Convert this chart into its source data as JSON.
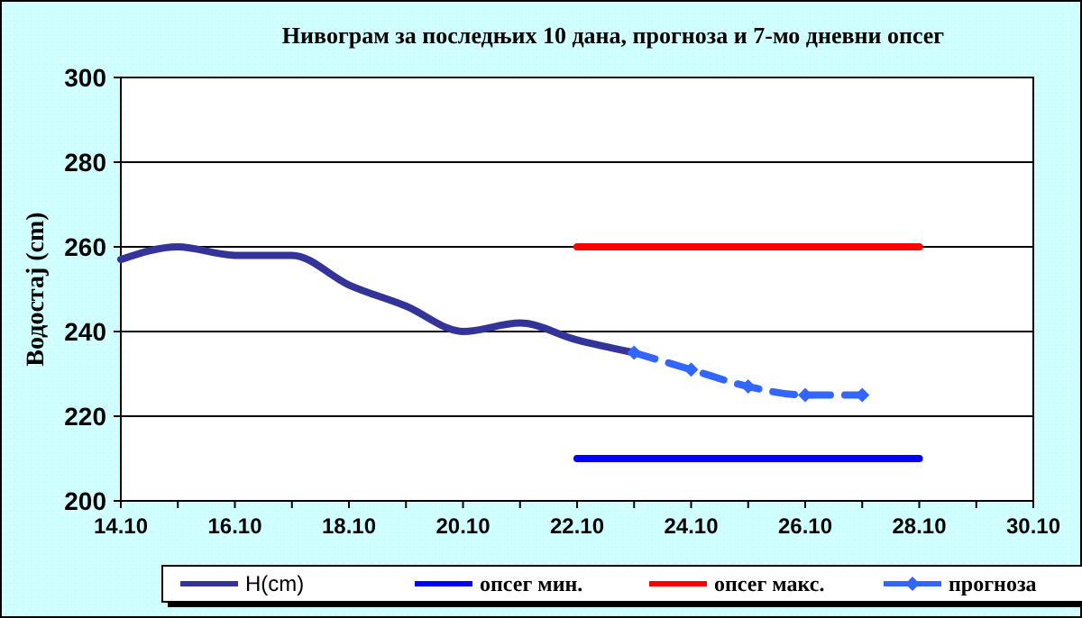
{
  "chart_data": {
    "type": "line",
    "title": "Нивограм за последњих 10 дана, прогноза и 7-мо дневни опсег",
    "ylabel": "Водостај (cm)",
    "xlim": [
      "--10-14",
      "--10-30"
    ],
    "xticks": [
      {
        "value": "--10-14",
        "label": "14.10"
      },
      {
        "value": "--10-15",
        "label": null
      },
      {
        "value": "--10-16",
        "label": "16.10"
      },
      {
        "value": "--10-17",
        "label": null
      },
      {
        "value": "--10-18",
        "label": "18.10"
      },
      {
        "value": "--10-19",
        "label": null
      },
      {
        "value": "--10-20",
        "label": "20.10"
      },
      {
        "value": "--10-21",
        "label": null
      },
      {
        "value": "--10-22",
        "label": "22.10"
      },
      {
        "value": "--10-23",
        "label": null
      },
      {
        "value": "--10-24",
        "label": "24.10"
      },
      {
        "value": "--10-25",
        "label": null
      },
      {
        "value": "--10-26",
        "label": "26.10"
      },
      {
        "value": "--10-27",
        "label": null
      },
      {
        "value": "--10-28",
        "label": "28.10"
      },
      {
        "value": "--10-29",
        "label": null
      },
      {
        "value": "--10-30",
        "label": "30.10"
      }
    ],
    "ylim": [
      200,
      300
    ],
    "yticks": [
      200,
      220,
      240,
      260,
      280,
      300
    ],
    "grid": "y",
    "legend": "bottom",
    "series": [
      {
        "name": "H(cm)",
        "color": "#333399",
        "x": [
          "--10-14",
          "--10-15",
          "--10-16",
          "--10-17",
          "--10-18",
          "--10-19",
          "--10-20",
          "--10-21",
          "--10-22",
          "--10-23"
        ],
        "values": [
          257,
          260,
          258,
          258,
          251,
          246,
          240,
          242,
          238,
          235
        ],
        "marker": "none",
        "line_style": "solid"
      },
      {
        "name": "опсег мин.",
        "color": "#0000ff",
        "x": [
          "--10-22",
          "--10-28"
        ],
        "values": [
          210,
          210
        ],
        "marker": "none",
        "line_style": "solid"
      },
      {
        "name": "опсег макс.",
        "color": "#ff0000",
        "x": [
          "--10-22",
          "--10-28"
        ],
        "values": [
          260,
          260
        ],
        "marker": "none",
        "line_style": "solid"
      },
      {
        "name": "прогноза",
        "color": "#3366ff",
        "x": [
          "--10-23",
          "--10-24",
          "--10-25",
          "--10-26",
          "--10-27"
        ],
        "values": [
          235,
          231,
          227,
          225,
          225
        ],
        "marker": "diamond",
        "line_style": "dashed"
      }
    ]
  }
}
